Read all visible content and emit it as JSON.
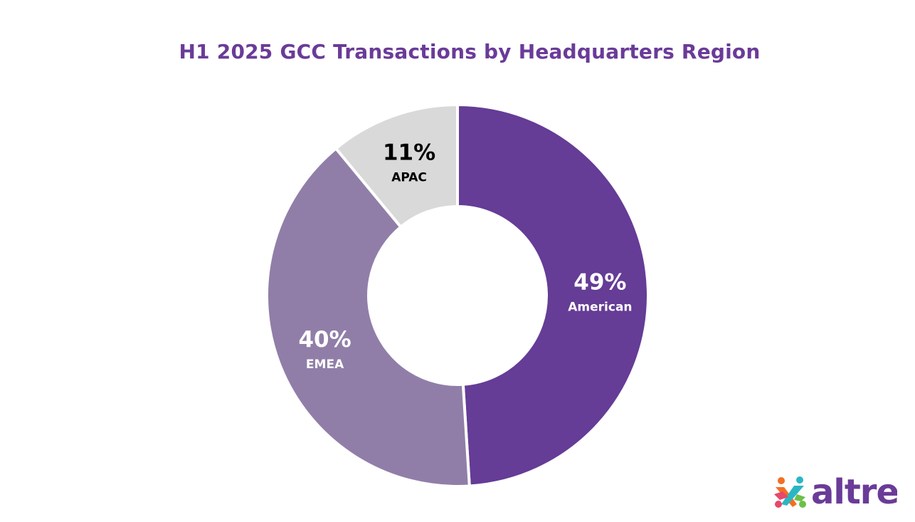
{
  "chart_data": {
    "type": "pie",
    "title": "H1 2025 GCC Transactions by Headquarters Region",
    "donut": true,
    "categories": [
      "American",
      "EMEA",
      "APAC"
    ],
    "values": [
      49,
      40,
      11
    ],
    "value_labels": [
      "49%",
      "40%",
      "11%"
    ],
    "colors": [
      "#653c96",
      "#907ea8",
      "#d9d9d9"
    ],
    "label_colors": [
      "#ffffff",
      "#ffffff",
      "#000000"
    ],
    "start_angle_deg": 0,
    "direction": "clockwise",
    "legend": "none"
  },
  "logo": {
    "text": "altre",
    "text_color": "#6a3b98",
    "icon": "people-cross-icon",
    "icon_colors": [
      "#f36f21",
      "#2bb6c4",
      "#e8486c",
      "#6cc04a"
    ]
  }
}
